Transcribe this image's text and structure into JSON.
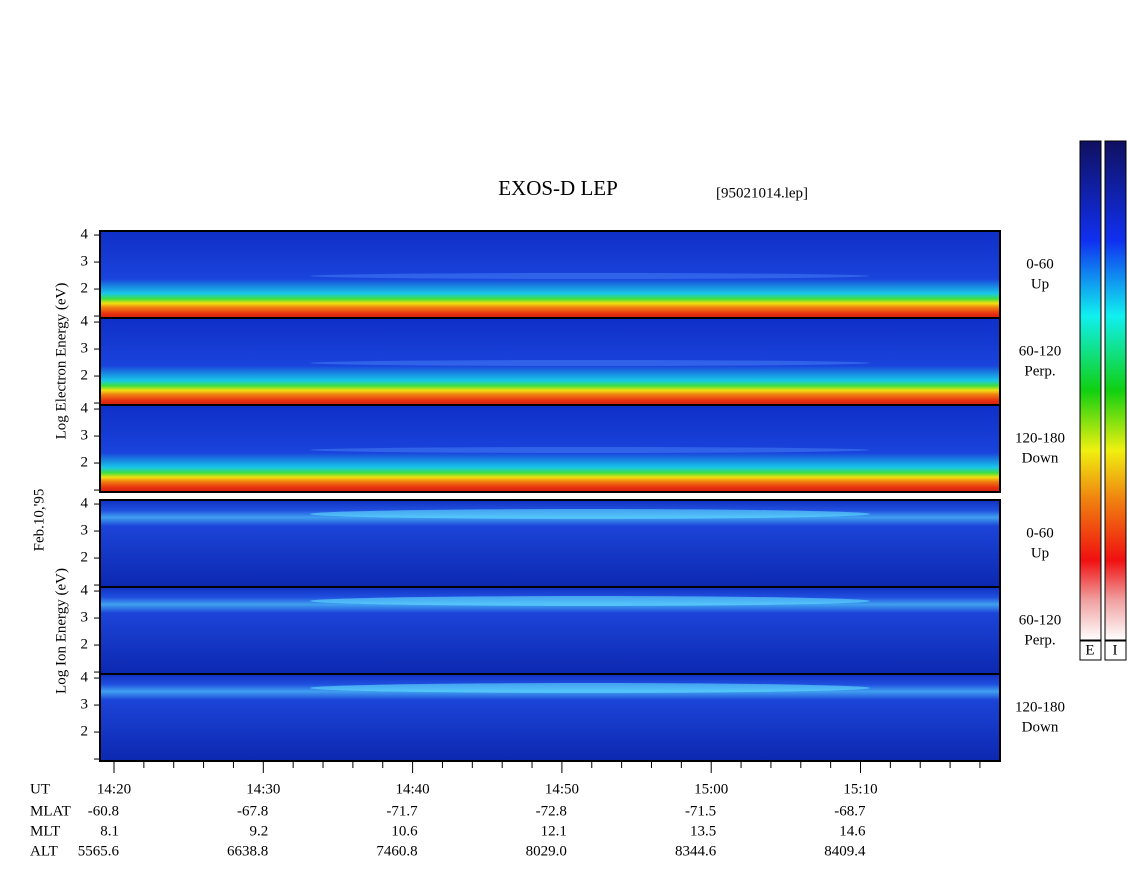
{
  "title": "EXOS-D LEP",
  "file": "[95021014.lep]",
  "date": "Feb.10,'95",
  "electron_axis_label": "Log  Electron  Energy  (eV)",
  "ion_axis_label": "Log  Ion  Energy  (eV)",
  "energy_ticks": [
    4,
    3,
    2
  ],
  "pitch_angles": [
    {
      "range": "0-60",
      "direction": "Up"
    },
    {
      "range": "60-120",
      "direction": "Perp."
    },
    {
      "range": "120-180",
      "direction": "Down"
    }
  ],
  "time_table": [
    {
      "label": "UT",
      "values": [
        "14:20",
        "14:30",
        "14:40",
        "14:50",
        "15:00",
        "15:10"
      ]
    },
    {
      "label": "MLAT",
      "values": [
        "-60.8",
        "-67.8",
        "-71.7",
        "-72.8",
        "-71.5",
        "-68.7"
      ]
    },
    {
      "label": "MLT",
      "values": [
        "8.1",
        "9.2",
        "10.6",
        "12.1",
        "13.5",
        "14.6"
      ]
    },
    {
      "label": "ALT",
      "values": [
        "5565.6",
        "6638.8",
        "7460.8",
        "8029.0",
        "8344.6",
        "8409.4"
      ]
    }
  ],
  "colorbar_labels": [
    "E",
    "I"
  ]
}
